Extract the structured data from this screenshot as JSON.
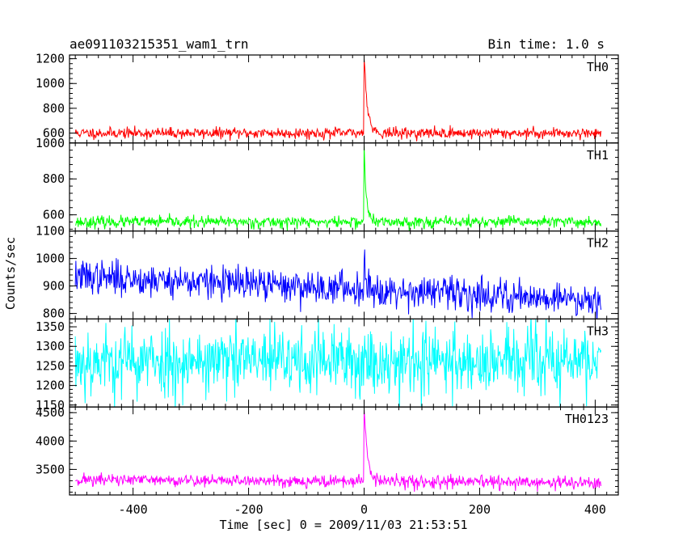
{
  "header": {
    "title": "ae091103215351_wam1_trn",
    "bin_time": "Bin time: 1.0 s"
  },
  "chart_data": {
    "type": "line",
    "title": "ae091103215351_wam1_trn",
    "xlabel": "Time [sec] 0 = 2009/11/03 21:53:51",
    "ylabel": "Counts/sec",
    "xlim": [
      -510,
      440
    ],
    "x_ticks": [
      -400,
      -200,
      0,
      200,
      400
    ],
    "x_range": [
      -500,
      410
    ],
    "panels": [
      {
        "name": "TH0",
        "color": "#ff0000",
        "ylim": [
          520,
          1230
        ],
        "y_ticks": [
          600,
          800,
          1000,
          1200
        ],
        "baseline": 600,
        "noise": 22,
        "trend": 0,
        "peak": 1240,
        "peak_decay": 5.5,
        "peak_shift": 0,
        "seed": 11
      },
      {
        "name": "TH1",
        "color": "#00ff00",
        "ylim": [
          510,
          1000
        ],
        "y_ticks": [
          600,
          800,
          1000
        ],
        "baseline": 560,
        "noise": 16,
        "trend": 0,
        "peak": 960,
        "peak_decay": 4,
        "peak_shift": 0,
        "seed": 23
      },
      {
        "name": "TH2",
        "color": "#0000ff",
        "ylim": [
          780,
          1100
        ],
        "y_ticks": [
          800,
          900,
          1000,
          1100
        ],
        "baseline": 935,
        "noise": 30,
        "trend": -85,
        "peak": 1050,
        "peak_decay": 4,
        "peak_shift": 0,
        "seed": 37
      },
      {
        "name": "TH3",
        "color": "#00ffff",
        "ylim": [
          1145,
          1370
        ],
        "y_ticks": [
          1150,
          1200,
          1250,
          1300,
          1350
        ],
        "baseline": 1262,
        "noise": 45,
        "trend": 0,
        "peak": 1262,
        "peak_decay": 1,
        "peak_shift": 0,
        "seed": 53
      },
      {
        "name": "TH0123",
        "color": "#ff00ff",
        "ylim": [
          3050,
          4600
        ],
        "y_ticks": [
          3500,
          4000,
          4500
        ],
        "baseline": 3320,
        "noise": 55,
        "trend": -60,
        "peak": 4620,
        "peak_decay": 6,
        "peak_shift": 0,
        "seed": 71
      }
    ]
  }
}
